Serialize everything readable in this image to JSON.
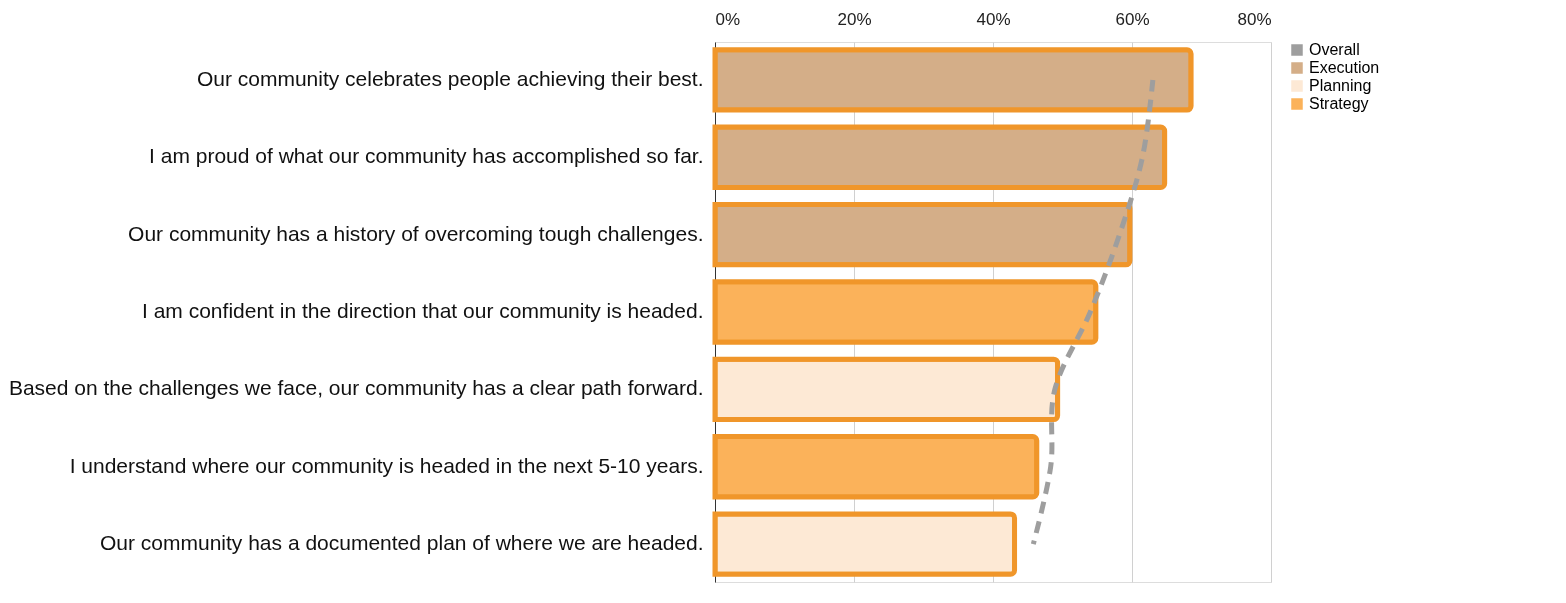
{
  "chart_data": {
    "type": "bar",
    "orientation": "horizontal",
    "categories": [
      "Our community celebrates people achieving their best.",
      "I am proud of what our community has accomplished so far.",
      "Our community has a history of overcoming tough challenges.",
      "I am confident in the direction that our community is headed.",
      "Based on the challenges we face, our community has a clear path forward.",
      "I understand where our community is headed in the next 5-10 years.",
      "Our community has a documented plan of where we are headed."
    ],
    "series": [
      {
        "name": "Overall",
        "type": "line",
        "color": "#9e9e9e",
        "line_style": "dashed",
        "values": [
          63.0,
          61.5,
          58.2,
          54.0,
          48.9,
          48.3,
          45.8
        ]
      },
      {
        "name": "Execution",
        "color": "#d4ae88",
        "values": [
          68.5,
          64.7,
          59.7,
          null,
          null,
          null,
          null
        ]
      },
      {
        "name": "Planning",
        "color": "#fde9d5",
        "values": [
          null,
          null,
          null,
          null,
          49.3,
          null,
          43.1
        ]
      },
      {
        "name": "Strategy",
        "color": "#fbb25a",
        "values": [
          null,
          null,
          null,
          54.8,
          null,
          46.3,
          null
        ]
      }
    ],
    "xlim": [
      0,
      80
    ],
    "xticks": [
      {
        "value": 0,
        "label": "0%"
      },
      {
        "value": 20,
        "label": "20%"
      },
      {
        "value": 40,
        "label": "40%"
      },
      {
        "value": 60,
        "label": "60%"
      },
      {
        "value": 80,
        "label": "80%"
      }
    ],
    "grid": "x",
    "legend": "right",
    "stacked": true
  }
}
